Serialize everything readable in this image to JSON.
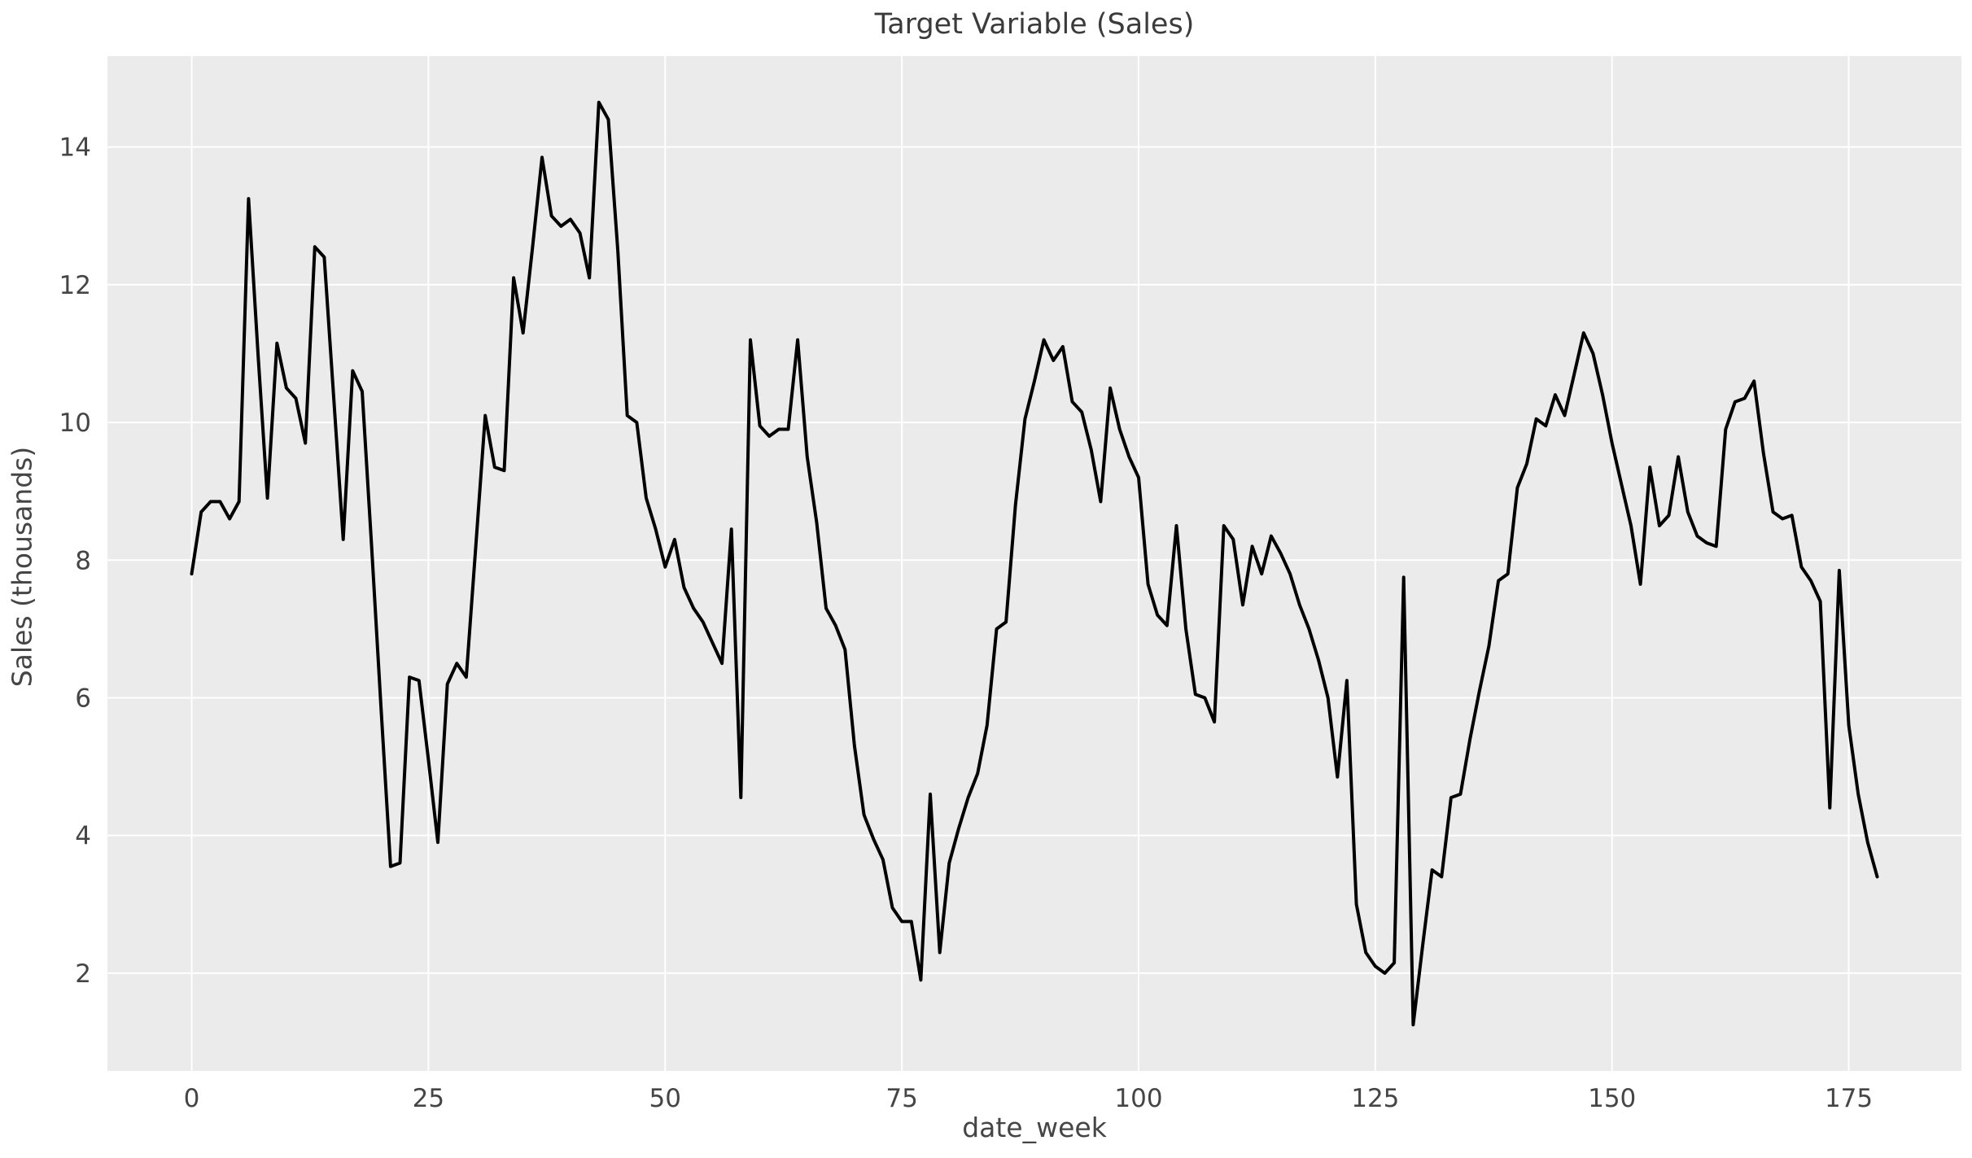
{
  "figure": {
    "title": "Target Variable (Sales)"
  },
  "chart_data": {
    "type": "line",
    "title": "Target Variable (Sales)",
    "xlabel": "date_week",
    "ylabel": "Sales (thousands)",
    "series_name": "sales",
    "x_start": 0,
    "x_step": 1,
    "n_points": 179,
    "x_ticks": [
      0,
      25,
      50,
      75,
      100,
      125,
      150,
      175
    ],
    "y_ticks": [
      2,
      4,
      6,
      8,
      10,
      12,
      14
    ],
    "xlim": [
      -8.9,
      186.9
    ],
    "ylim": [
      0.58,
      15.32
    ],
    "grid": true,
    "legend_position": "none",
    "line_color": "#000000",
    "plot_bg_color": "#ebebeb",
    "grid_color": "#ffffff",
    "tick_label_color": "#454545",
    "values": [
      7.8,
      8.7,
      8.85,
      8.85,
      8.6,
      8.85,
      13.25,
      11.0,
      8.9,
      11.15,
      10.5,
      10.35,
      9.7,
      12.55,
      12.4,
      10.35,
      8.3,
      10.75,
      10.45,
      8.2,
      5.85,
      3.55,
      3.6,
      6.3,
      6.25,
      5.1,
      3.9,
      6.2,
      6.5,
      6.3,
      8.2,
      10.1,
      9.35,
      9.3,
      12.1,
      11.3,
      12.55,
      13.85,
      13.0,
      12.85,
      12.95,
      12.75,
      12.1,
      14.65,
      14.4,
      12.5,
      10.1,
      10.0,
      8.9,
      8.45,
      7.9,
      8.3,
      7.6,
      7.3,
      7.1,
      6.8,
      6.5,
      8.45,
      4.55,
      11.2,
      9.95,
      9.8,
      9.9,
      9.9,
      11.2,
      9.5,
      8.55,
      7.3,
      7.05,
      6.7,
      5.3,
      4.3,
      3.95,
      3.65,
      2.95,
      2.75,
      2.75,
      1.9,
      4.6,
      2.3,
      3.6,
      4.1,
      4.55,
      4.9,
      5.6,
      7.0,
      7.1,
      8.8,
      10.05,
      10.6,
      11.2,
      10.9,
      11.1,
      10.3,
      10.15,
      9.6,
      8.85,
      10.5,
      9.9,
      9.5,
      9.2,
      7.65,
      7.2,
      7.05,
      8.5,
      7.0,
      6.05,
      6.0,
      5.65,
      8.5,
      8.3,
      7.35,
      8.2,
      7.8,
      8.35,
      8.1,
      7.8,
      7.35,
      7.0,
      6.55,
      6.0,
      4.85,
      6.25,
      3.0,
      2.3,
      2.1,
      2.0,
      2.15,
      7.75,
      1.25,
      2.4,
      3.5,
      3.4,
      4.55,
      4.6,
      5.4,
      6.1,
      6.75,
      7.7,
      7.8,
      9.05,
      9.4,
      10.05,
      9.95,
      10.4,
      10.1,
      10.7,
      11.3,
      11.0,
      10.4,
      9.7,
      9.1,
      8.5,
      7.65,
      9.35,
      8.5,
      8.65,
      9.5,
      8.7,
      8.35,
      8.25,
      8.2,
      9.9,
      10.3,
      10.35,
      10.6,
      9.55,
      8.7,
      8.6,
      8.65,
      7.9,
      7.7,
      7.4,
      4.4,
      7.85,
      5.6,
      4.6,
      3.9,
      3.4
    ]
  }
}
